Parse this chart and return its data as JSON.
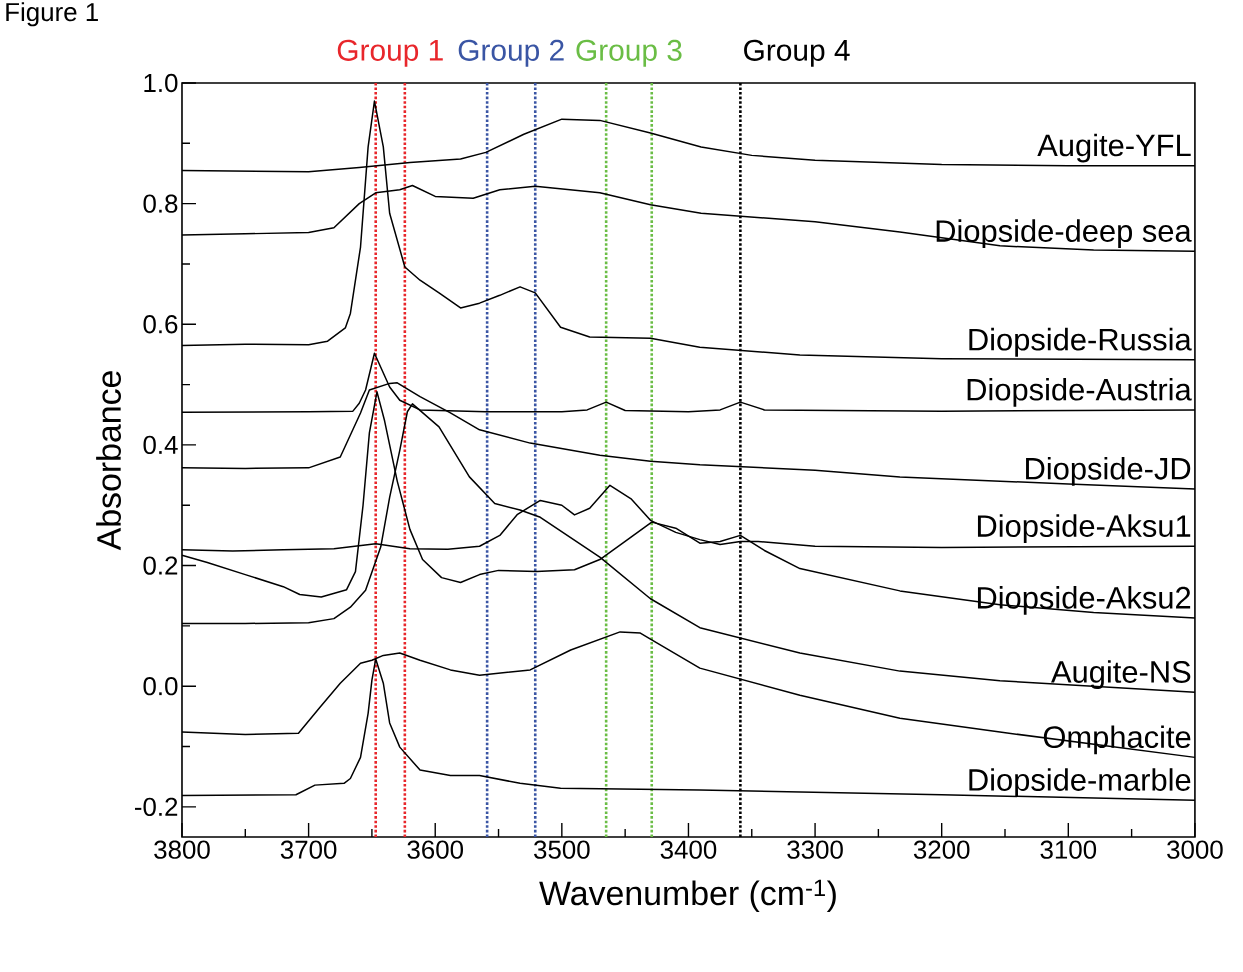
{
  "chart_data": {
    "type": "line",
    "title": "Figure 1",
    "xlabel": "Wavenumber (cm$^{-1}$)",
    "ylabel": "Absorbance",
    "xlim": [
      3800,
      3000
    ],
    "ylim": [
      -0.25,
      1.0
    ],
    "xticks": [
      3800,
      3700,
      3600,
      3500,
      3400,
      3300,
      3200,
      3100,
      3000
    ],
    "yticks": [
      -0.2,
      {
        "value": 0,
        "label": "0.0"
      },
      0.2,
      0.4,
      0.6,
      0.8,
      {
        "value": 1,
        "label": "1.0"
      }
    ],
    "legend": false,
    "marker": "none",
    "line_style": "solid",
    "ref_lines": [
      {
        "axis": "x",
        "value": 3647,
        "label": "Group 1",
        "color": "#e8262b",
        "line_style": "dotted"
      },
      {
        "axis": "x",
        "value": 3624,
        "color": "#e8262b",
        "line_style": "dotted"
      },
      {
        "axis": "x",
        "value": 3559,
        "label": "Group 2",
        "color": "#3a55a4",
        "line_style": "dotted"
      },
      {
        "axis": "x",
        "value": 3521,
        "color": "#3a55a4",
        "line_style": "dotted"
      },
      {
        "axis": "x",
        "value": 3465,
        "label": "Group 3",
        "color": "#6abd45",
        "line_style": "dotted"
      },
      {
        "axis": "x",
        "value": 3429,
        "color": "#6abd45",
        "line_style": "dotted"
      },
      {
        "axis": "x",
        "value": 3359,
        "label": "Group 4",
        "color": "#000000",
        "line_style": "dotted"
      }
    ],
    "series": [
      {
        "name": "Augite-YFL",
        "color": "#000000",
        "x": [
          3800,
          3700,
          3660,
          3620,
          3580,
          3560,
          3530,
          3500,
          3470,
          3430,
          3390,
          3350,
          3300,
          3200,
          3100,
          3000
        ],
        "values": [
          0.855,
          0.853,
          0.86,
          0.868,
          0.874,
          0.885,
          0.915,
          0.94,
          0.938,
          0.917,
          0.894,
          0.88,
          0.872,
          0.865,
          0.863,
          0.863
        ]
      },
      {
        "name": "Diopside-deep sea",
        "color": "#000000",
        "x": [
          3800,
          3750,
          3700,
          3680,
          3660,
          3647,
          3628,
          3618,
          3600,
          3570,
          3549,
          3521,
          3470,
          3430,
          3390,
          3300,
          3233,
          3154,
          3080,
          3000
        ],
        "values": [
          0.748,
          0.75,
          0.752,
          0.76,
          0.8,
          0.818,
          0.823,
          0.83,
          0.812,
          0.809,
          0.823,
          0.829,
          0.818,
          0.798,
          0.784,
          0.77,
          0.753,
          0.73,
          0.723,
          0.721
        ]
      },
      {
        "name": "Diopside-Russia",
        "color": "#000000",
        "x": [
          3800,
          3750,
          3700,
          3685,
          3671,
          3667,
          3659,
          3653,
          3648,
          3641,
          3636,
          3624,
          3612,
          3597,
          3580,
          3565,
          3549,
          3533,
          3521,
          3501,
          3478,
          3430,
          3391,
          3312,
          3200,
          3000
        ],
        "values": [
          0.565,
          0.567,
          0.566,
          0.572,
          0.594,
          0.618,
          0.728,
          0.894,
          0.97,
          0.894,
          0.784,
          0.695,
          0.673,
          0.652,
          0.627,
          0.635,
          0.648,
          0.662,
          0.652,
          0.595,
          0.579,
          0.577,
          0.562,
          0.549,
          0.543,
          0.541
        ]
      },
      {
        "name": "Diopside-Austria",
        "color": "#000000",
        "x": [
          3800,
          3700,
          3665,
          3660,
          3655,
          3648,
          3636,
          3628,
          3612,
          3560,
          3500,
          3480,
          3465,
          3450,
          3400,
          3375,
          3359,
          3340,
          3200,
          3000
        ],
        "values": [
          0.454,
          0.455,
          0.456,
          0.469,
          0.491,
          0.552,
          0.496,
          0.474,
          0.458,
          0.455,
          0.455,
          0.458,
          0.471,
          0.457,
          0.455,
          0.458,
          0.471,
          0.458,
          0.456,
          0.458
        ]
      },
      {
        "name": "Diopside-JD",
        "color": "#000000",
        "x": [
          3800,
          3750,
          3700,
          3675,
          3659,
          3652,
          3636,
          3630,
          3612,
          3588,
          3565,
          3525,
          3470,
          3430,
          3391,
          3300,
          3233,
          3100,
          3000
        ],
        "values": [
          0.362,
          0.361,
          0.362,
          0.38,
          0.453,
          0.491,
          0.502,
          0.503,
          0.48,
          0.453,
          0.425,
          0.403,
          0.383,
          0.373,
          0.367,
          0.358,
          0.347,
          0.335,
          0.327
        ]
      },
      {
        "name": "Diopside-Aksu1",
        "color": "#000000",
        "x": [
          3800,
          3760,
          3720,
          3680,
          3647,
          3620,
          3590,
          3565,
          3549,
          3535,
          3517,
          3500,
          3490,
          3478,
          3462,
          3445,
          3430,
          3410,
          3391,
          3375,
          3359,
          3345,
          3300,
          3200,
          3000
        ],
        "values": [
          0.226,
          0.224,
          0.226,
          0.228,
          0.236,
          0.228,
          0.227,
          0.232,
          0.25,
          0.285,
          0.308,
          0.3,
          0.284,
          0.295,
          0.333,
          0.31,
          0.275,
          0.255,
          0.243,
          0.235,
          0.24,
          0.24,
          0.232,
          0.23,
          0.232
        ]
      },
      {
        "name": "Diopside-Aksu2",
        "color": "#000000",
        "x": [
          3800,
          3780,
          3750,
          3720,
          3707,
          3690,
          3670,
          3663,
          3657,
          3652,
          3646,
          3640,
          3630,
          3620,
          3610,
          3595,
          3580,
          3565,
          3550,
          3520,
          3490,
          3470,
          3450,
          3429,
          3410,
          3391,
          3375,
          3359,
          3340,
          3312,
          3233,
          3154,
          3080,
          3000
        ],
        "values": [
          0.217,
          0.205,
          0.185,
          0.165,
          0.152,
          0.148,
          0.16,
          0.19,
          0.3,
          0.42,
          0.488,
          0.44,
          0.34,
          0.26,
          0.21,
          0.18,
          0.172,
          0.185,
          0.192,
          0.19,
          0.193,
          0.21,
          0.24,
          0.272,
          0.262,
          0.237,
          0.24,
          0.25,
          0.225,
          0.195,
          0.158,
          0.135,
          0.122,
          0.113
        ]
      },
      {
        "name": "Augite-NS",
        "color": "#000000",
        "x": [
          3800,
          3750,
          3700,
          3680,
          3667,
          3655,
          3643,
          3636,
          3628,
          3622,
          3618,
          3597,
          3573,
          3553,
          3533,
          3517,
          3470,
          3430,
          3391,
          3312,
          3233,
          3154,
          3000
        ],
        "values": [
          0.104,
          0.104,
          0.105,
          0.112,
          0.131,
          0.159,
          0.231,
          0.313,
          0.391,
          0.455,
          0.468,
          0.43,
          0.347,
          0.303,
          0.292,
          0.28,
          0.214,
          0.145,
          0.097,
          0.055,
          0.025,
          0.009,
          -0.01
        ]
      },
      {
        "name": "Omphacite",
        "color": "#000000",
        "x": [
          3800,
          3750,
          3708,
          3691,
          3675,
          3659,
          3650,
          3641,
          3628,
          3612,
          3588,
          3565,
          3525,
          3493,
          3454,
          3438,
          3430,
          3391,
          3312,
          3233,
          3154,
          3000
        ],
        "values": [
          -0.076,
          -0.08,
          -0.078,
          -0.035,
          0.005,
          0.038,
          0.043,
          0.051,
          0.055,
          0.043,
          0.027,
          0.018,
          0.027,
          0.06,
          0.09,
          0.088,
          0.078,
          0.03,
          -0.015,
          -0.053,
          -0.076,
          -0.118
        ]
      },
      {
        "name": "Diopside-marble",
        "color": "#000000",
        "x": [
          3800,
          3710,
          3695,
          3672,
          3667,
          3659,
          3653,
          3650,
          3647,
          3641,
          3636,
          3628,
          3612,
          3588,
          3565,
          3533,
          3501,
          3391,
          3200,
          3000
        ],
        "values": [
          -0.181,
          -0.18,
          -0.164,
          -0.161,
          -0.153,
          -0.118,
          -0.045,
          0.01,
          0.045,
          0.005,
          -0.061,
          -0.101,
          -0.139,
          -0.148,
          -0.148,
          -0.161,
          -0.169,
          -0.172,
          -0.18,
          -0.189
        ]
      }
    ]
  }
}
